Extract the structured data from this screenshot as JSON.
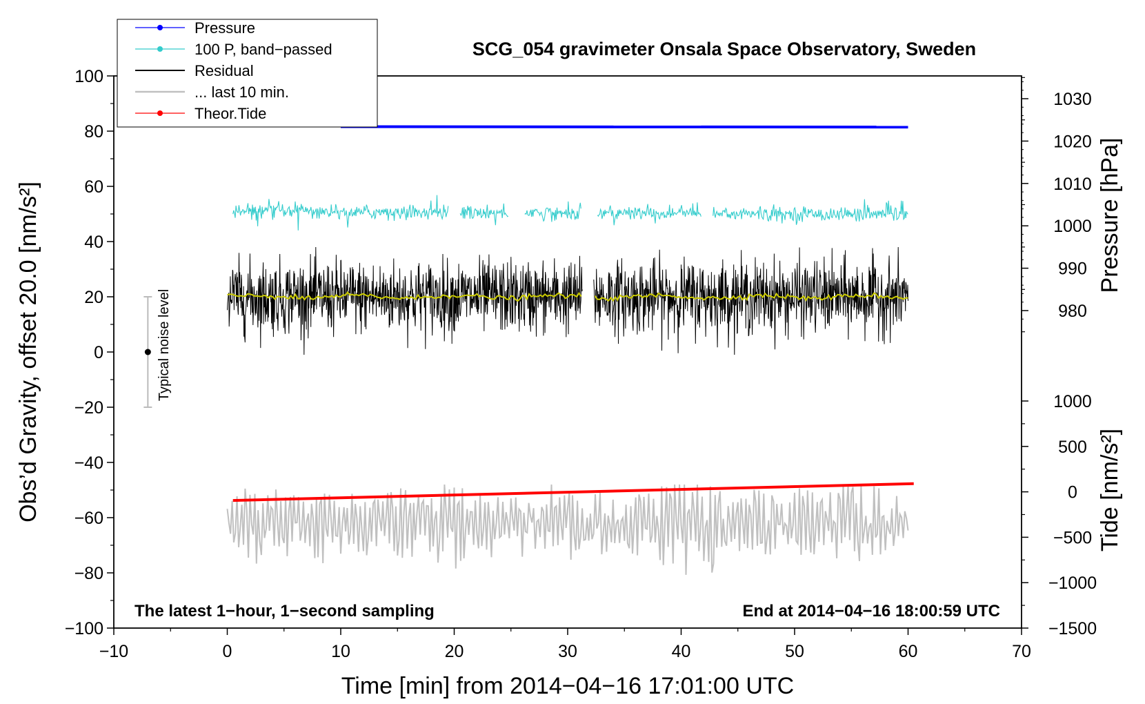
{
  "chart_data": {
    "type": "line",
    "title": "SCG_054 gravimeter Onsala Space Observatory, Sweden",
    "xlabel": "Time [min] from 2014−04−16 17:01:00 UTC",
    "ylabel_left": "Obs’d Gravity, offset 20.0 [nm/s²]",
    "ylabel_right_top": "Pressure [hPa]",
    "ylabel_right_bottom": "Tide [nm/s²]",
    "xlim": [
      -10,
      70
    ],
    "ylim_left": [
      -100,
      100
    ],
    "x_ticks": [
      "−10",
      "0",
      "10",
      "20",
      "30",
      "40",
      "50",
      "60",
      "70"
    ],
    "y_left_ticks": [
      "−100",
      "−80",
      "−60",
      "−40",
      "−20",
      "0",
      "20",
      "40",
      "60",
      "80",
      "100"
    ],
    "pressure_axis": {
      "ticks": [
        "980",
        "990",
        "1000",
        "1010",
        "1020",
        "1030"
      ],
      "values": [
        980,
        990,
        1000,
        1010,
        1020,
        1030
      ]
    },
    "tide_axis": {
      "ticks": [
        "−1500",
        "−1000",
        "−500",
        "0",
        "500",
        "1000"
      ],
      "values": [
        -1500,
        -1000,
        -500,
        0,
        500,
        1000
      ]
    },
    "annotation_left": "The latest 1−hour, 1−second sampling",
    "annotation_right": "End at 2014−04−16 18:00:59 UTC",
    "noise_label": "Typical noise level",
    "noise_bar": {
      "x": -7,
      "center": 0,
      "low": -20,
      "high": 20
    },
    "legend": [
      {
        "label": "Pressure",
        "color": "#0000ff",
        "marker": true
      },
      {
        "label": "100 P, band−passed",
        "color": "#33cccc",
        "marker": true
      },
      {
        "label": "Residual",
        "color": "#000000",
        "marker": false
      },
      {
        "label": "... last 10 min.",
        "color": "#c0c0c0",
        "marker": false
      },
      {
        "label": "Theor.Tide",
        "color": "#ff0000",
        "marker": true
      }
    ],
    "series": [
      {
        "name": "Pressure",
        "axis": "pressure",
        "color": "#0000ff",
        "x_range": [
          10,
          60
        ],
        "start": 1023.4,
        "end": 1023.3
      },
      {
        "name": "100 P, band-passed",
        "axis": "left",
        "color": "#33cccc",
        "x_range": [
          0.5,
          60
        ],
        "level": 51,
        "gaps": [
          [
            19.5,
            20.5
          ],
          [
            24.8,
            26.2
          ],
          [
            31.2,
            32.6
          ],
          [
            41.8,
            42.8
          ]
        ]
      },
      {
        "name": "Residual",
        "axis": "left",
        "color": "#000000",
        "x_range": [
          0,
          60
        ],
        "level": 20,
        "gaps": [
          [
            31.3,
            32.3
          ]
        ]
      },
      {
        "name": "Residual (running mean)",
        "axis": "left",
        "color": "#cccc00",
        "x_range": [
          0,
          60
        ],
        "level": 20
      },
      {
        "name": "... last 10 min.",
        "axis": "left",
        "color": "#c0c0c0",
        "x_range": [
          0,
          60
        ],
        "level": -62
      },
      {
        "name": "Theor.Tide",
        "axis": "tide",
        "color": "#ff0000",
        "x_range": [
          0.5,
          60.5
        ],
        "start": -95,
        "end": 90
      }
    ],
    "colors": {
      "pressure": "#0000ff",
      "band_passed": "#33cccc",
      "residual": "#000000",
      "mean": "#cccc00",
      "last10": "#c0c0c0",
      "tide": "#ff0000"
    }
  }
}
